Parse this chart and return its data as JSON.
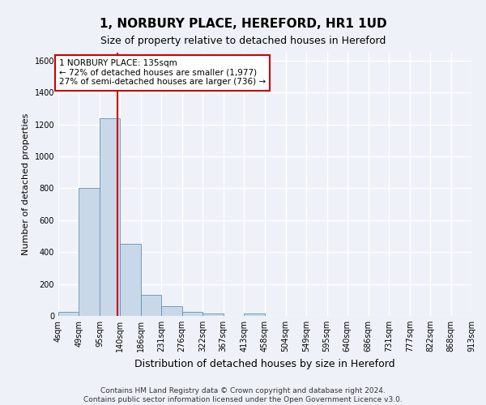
{
  "title": "1, NORBURY PLACE, HEREFORD, HR1 1UD",
  "subtitle": "Size of property relative to detached houses in Hereford",
  "xlabel": "Distribution of detached houses by size in Hereford",
  "ylabel": "Number of detached properties",
  "bin_edges": [
    4,
    49,
    95,
    140,
    186,
    231,
    276,
    322,
    367,
    413,
    458,
    504,
    549,
    595,
    640,
    686,
    731,
    777,
    822,
    868,
    913
  ],
  "bin_labels": [
    "4sqm",
    "49sqm",
    "95sqm",
    "140sqm",
    "186sqm",
    "231sqm",
    "276sqm",
    "322sqm",
    "367sqm",
    "413sqm",
    "458sqm",
    "504sqm",
    "549sqm",
    "595sqm",
    "640sqm",
    "686sqm",
    "731sqm",
    "777sqm",
    "822sqm",
    "868sqm",
    "913sqm"
  ],
  "counts": [
    25,
    800,
    1240,
    450,
    130,
    60,
    25,
    15,
    0,
    15,
    0,
    0,
    0,
    0,
    0,
    0,
    0,
    0,
    0,
    0
  ],
  "bar_color": "#c8d8e8",
  "bar_edge_color": "#6090b8",
  "property_size": 135,
  "vline_color": "#cc0000",
  "annotation_text": "1 NORBURY PLACE: 135sqm\n← 72% of detached houses are smaller (1,977)\n27% of semi-detached houses are larger (736) →",
  "annotation_box_color": "#ffffff",
  "annotation_box_edge": "#cc0000",
  "ylim": [
    0,
    1650
  ],
  "yticks": [
    0,
    200,
    400,
    600,
    800,
    1000,
    1200,
    1400,
    1600
  ],
  "background_color": "#eef2f8",
  "grid_color": "#ffffff",
  "title_fontsize": 11,
  "subtitle_fontsize": 9,
  "ylabel_fontsize": 8,
  "xlabel_fontsize": 9,
  "tick_fontsize": 7,
  "footer_line1": "Contains HM Land Registry data © Crown copyright and database right 2024.",
  "footer_line2": "Contains public sector information licensed under the Open Government Licence v3.0."
}
